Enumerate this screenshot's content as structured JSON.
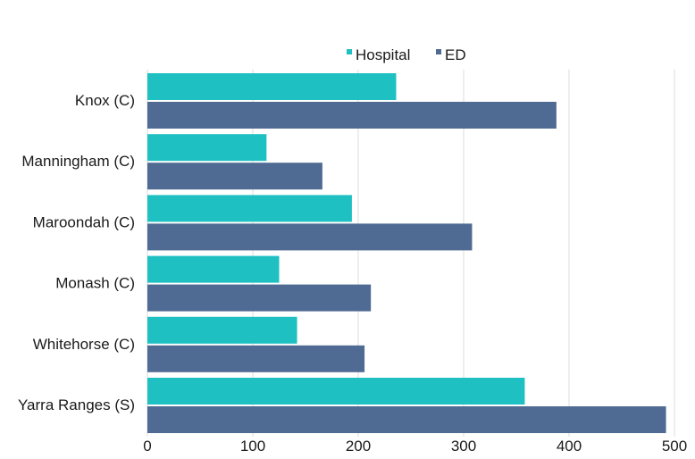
{
  "chart_data": {
    "type": "bar",
    "orientation": "horizontal",
    "title": "",
    "categories": [
      "Knox (C)",
      "Manningham (C)",
      "Maroondah (C)",
      "Monash (C)",
      "Whitehorse (C)",
      "Yarra Ranges (S)"
    ],
    "series": [
      {
        "name": "Hospital",
        "color": "#1fc0c2",
        "values": [
          236,
          113,
          194,
          125,
          142,
          358
        ]
      },
      {
        "name": "ED",
        "color": "#4f6a93",
        "values": [
          388,
          166,
          308,
          212,
          206,
          492
        ]
      }
    ],
    "xlim": [
      0,
      500
    ],
    "xticks": [
      "0",
      "100",
      "200",
      "300",
      "400",
      "500"
    ],
    "grid": "vertical",
    "legend_position": "top-right",
    "xlabel": "",
    "ylabel": ""
  }
}
